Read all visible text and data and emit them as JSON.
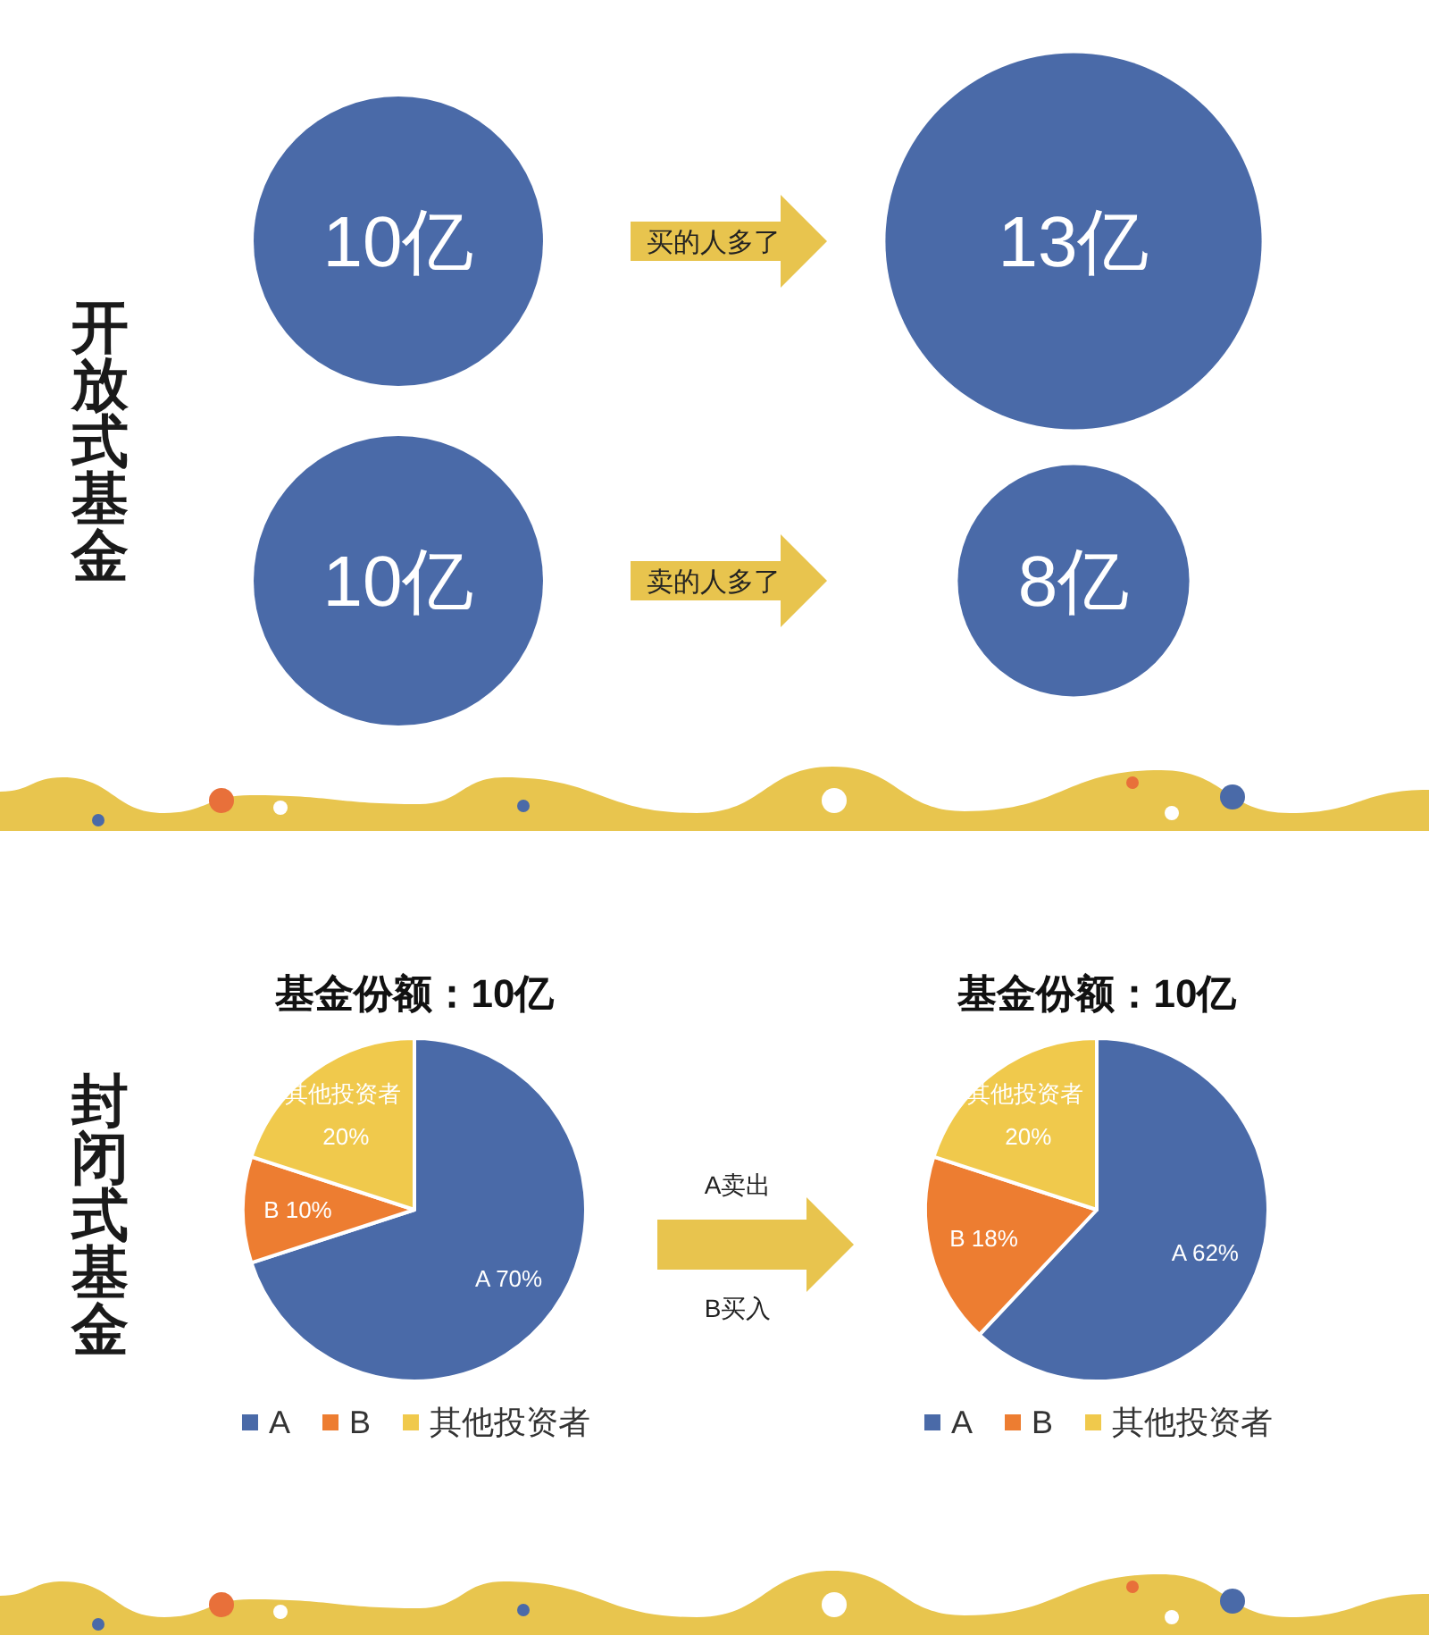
{
  "chart_data": [
    {
      "type": "other",
      "ylabel": "开放式基金",
      "values": [
        10,
        13,
        10,
        8
      ],
      "value_labels": [
        "10亿",
        "13亿",
        "10亿",
        "8亿"
      ],
      "color": "#4a6aa8",
      "annotations": [
        "买的人多了",
        "卖的人多了"
      ]
    },
    {
      "type": "pie",
      "title": "基金份额：10亿",
      "ylabel": "封闭式基金",
      "categories": [
        "A",
        "B",
        "其他投资者"
      ],
      "values": [
        70,
        10,
        20
      ],
      "colors": [
        "#4a6aa8",
        "#ed7d31",
        "#f0c94c"
      ],
      "value_labels": [
        "A 70%",
        "B 10%",
        "其他投资者 20%"
      ],
      "legend": "bottom",
      "annotations": [
        "A卖出",
        "B买入"
      ]
    },
    {
      "type": "pie",
      "title": "基金份额：10亿",
      "categories": [
        "A",
        "B",
        "其他投资者"
      ],
      "values": [
        62,
        18,
        20
      ],
      "colors": [
        "#4a6aa8",
        "#ed7d31",
        "#f0c94c"
      ],
      "value_labels": [
        "A 62%",
        "B 18%",
        "其他投资者 20%"
      ],
      "legend": "bottom"
    }
  ]
}
